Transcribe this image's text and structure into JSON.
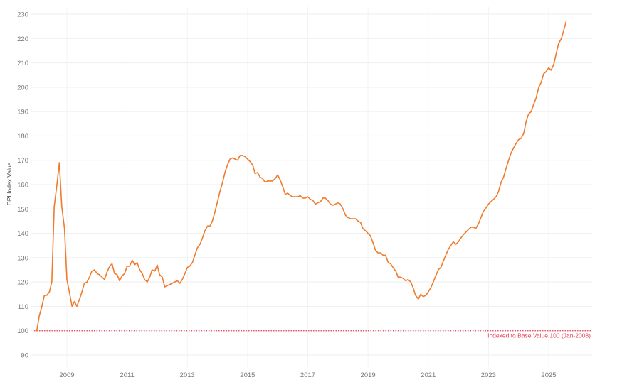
{
  "chart_data": {
    "type": "line",
    "title": "",
    "xlabel": "",
    "ylabel": "DPI Index Value",
    "ylim": [
      87,
      232
    ],
    "yticks": [
      90,
      100,
      110,
      120,
      130,
      140,
      150,
      160,
      170,
      180,
      190,
      200,
      210,
      220,
      230
    ],
    "xticks": [
      "2009",
      "2011",
      "2013",
      "2015",
      "2017",
      "2019",
      "2021",
      "2023",
      "2025"
    ],
    "xlim": [
      2007.85,
      2026.4
    ],
    "grid": true,
    "legend": null,
    "line_color": "#f07b2c",
    "baseline": {
      "value": 100,
      "style": "dotted",
      "color": "#e8405a",
      "label": "Indexed to Base Value 100 (Jan-2008)"
    },
    "series": [
      {
        "name": "DPI Index Value",
        "points": [
          [
            2008.0,
            100
          ],
          [
            2008.08,
            106
          ],
          [
            2008.17,
            110
          ],
          [
            2008.25,
            114.5
          ],
          [
            2008.33,
            114.5
          ],
          [
            2008.42,
            116
          ],
          [
            2008.5,
            120
          ],
          [
            2008.58,
            151
          ],
          [
            2008.67,
            160
          ],
          [
            2008.75,
            169
          ],
          [
            2008.83,
            151
          ],
          [
            2008.92,
            142
          ],
          [
            2009.0,
            121
          ],
          [
            2009.08,
            116
          ],
          [
            2009.17,
            110
          ],
          [
            2009.25,
            112
          ],
          [
            2009.33,
            110
          ],
          [
            2009.42,
            113
          ],
          [
            2009.5,
            116
          ],
          [
            2009.58,
            119.5
          ],
          [
            2009.67,
            120
          ],
          [
            2009.75,
            122
          ],
          [
            2009.83,
            124.5
          ],
          [
            2009.92,
            125
          ],
          [
            2010.0,
            123.5
          ],
          [
            2010.08,
            123
          ],
          [
            2010.17,
            122
          ],
          [
            2010.25,
            121
          ],
          [
            2010.33,
            124
          ],
          [
            2010.42,
            126.5
          ],
          [
            2010.5,
            127.5
          ],
          [
            2010.58,
            123.5
          ],
          [
            2010.67,
            123
          ],
          [
            2010.75,
            120.5
          ],
          [
            2010.83,
            122.5
          ],
          [
            2010.92,
            123.5
          ],
          [
            2011.0,
            126.5
          ],
          [
            2011.08,
            126.5
          ],
          [
            2011.17,
            129
          ],
          [
            2011.25,
            127
          ],
          [
            2011.33,
            128
          ],
          [
            2011.42,
            125
          ],
          [
            2011.5,
            123.5
          ],
          [
            2011.58,
            121
          ],
          [
            2011.67,
            120
          ],
          [
            2011.75,
            122
          ],
          [
            2011.83,
            125
          ],
          [
            2011.92,
            124.5
          ],
          [
            2012.0,
            127
          ],
          [
            2012.08,
            123
          ],
          [
            2012.17,
            122
          ],
          [
            2012.25,
            118
          ],
          [
            2012.33,
            118.5
          ],
          [
            2012.42,
            119
          ],
          [
            2012.5,
            119.5
          ],
          [
            2012.58,
            120
          ],
          [
            2012.67,
            120.5
          ],
          [
            2012.75,
            119.5
          ],
          [
            2012.83,
            121
          ],
          [
            2012.92,
            123.5
          ],
          [
            2013.0,
            126
          ],
          [
            2013.08,
            126.5
          ],
          [
            2013.17,
            128
          ],
          [
            2013.25,
            131
          ],
          [
            2013.33,
            134
          ],
          [
            2013.42,
            135.5
          ],
          [
            2013.5,
            138
          ],
          [
            2013.58,
            141
          ],
          [
            2013.67,
            143
          ],
          [
            2013.75,
            143
          ],
          [
            2013.83,
            145
          ],
          [
            2013.92,
            149
          ],
          [
            2014.0,
            153
          ],
          [
            2014.08,
            157
          ],
          [
            2014.17,
            161
          ],
          [
            2014.25,
            165
          ],
          [
            2014.33,
            168
          ],
          [
            2014.42,
            170.5
          ],
          [
            2014.5,
            171
          ],
          [
            2014.58,
            170.5
          ],
          [
            2014.67,
            170
          ],
          [
            2014.75,
            172
          ],
          [
            2014.83,
            172
          ],
          [
            2014.92,
            171.5
          ],
          [
            2015.0,
            170.5
          ],
          [
            2015.08,
            169.5
          ],
          [
            2015.17,
            168
          ],
          [
            2015.25,
            164.5
          ],
          [
            2015.33,
            165
          ],
          [
            2015.42,
            163
          ],
          [
            2015.5,
            162.5
          ],
          [
            2015.58,
            161
          ],
          [
            2015.67,
            161.5
          ],
          [
            2015.75,
            161.5
          ],
          [
            2015.83,
            161.5
          ],
          [
            2015.92,
            162.5
          ],
          [
            2016.0,
            164
          ],
          [
            2016.08,
            162
          ],
          [
            2016.17,
            159
          ],
          [
            2016.25,
            156
          ],
          [
            2016.33,
            156.5
          ],
          [
            2016.42,
            155.5
          ],
          [
            2016.5,
            155
          ],
          [
            2016.58,
            155
          ],
          [
            2016.67,
            155
          ],
          [
            2016.75,
            155.5
          ],
          [
            2016.83,
            154.5
          ],
          [
            2016.92,
            154.5
          ],
          [
            2017.0,
            155
          ],
          [
            2017.08,
            154
          ],
          [
            2017.17,
            153.5
          ],
          [
            2017.25,
            152
          ],
          [
            2017.33,
            152.5
          ],
          [
            2017.42,
            153
          ],
          [
            2017.5,
            154.5
          ],
          [
            2017.58,
            154.5
          ],
          [
            2017.67,
            153.5
          ],
          [
            2017.75,
            152
          ],
          [
            2017.83,
            151.5
          ],
          [
            2017.92,
            152
          ],
          [
            2018.0,
            152.5
          ],
          [
            2018.08,
            152
          ],
          [
            2018.17,
            150
          ],
          [
            2018.25,
            147.5
          ],
          [
            2018.33,
            146.5
          ],
          [
            2018.42,
            146
          ],
          [
            2018.5,
            146
          ],
          [
            2018.58,
            146
          ],
          [
            2018.67,
            145
          ],
          [
            2018.75,
            144.5
          ],
          [
            2018.83,
            142
          ],
          [
            2018.92,
            141
          ],
          [
            2019.0,
            140
          ],
          [
            2019.08,
            139
          ],
          [
            2019.17,
            136
          ],
          [
            2019.25,
            133
          ],
          [
            2019.33,
            132
          ],
          [
            2019.42,
            132
          ],
          [
            2019.5,
            131
          ],
          [
            2019.58,
            131
          ],
          [
            2019.67,
            128
          ],
          [
            2019.75,
            127.5
          ],
          [
            2019.83,
            126
          ],
          [
            2019.92,
            124.5
          ],
          [
            2020.0,
            122
          ],
          [
            2020.08,
            122
          ],
          [
            2020.17,
            121.5
          ],
          [
            2020.25,
            120.5
          ],
          [
            2020.33,
            121
          ],
          [
            2020.42,
            120
          ],
          [
            2020.5,
            117.5
          ],
          [
            2020.58,
            114.5
          ],
          [
            2020.67,
            113
          ],
          [
            2020.75,
            115
          ],
          [
            2020.83,
            114
          ],
          [
            2020.92,
            114.5
          ],
          [
            2021.0,
            116
          ],
          [
            2021.08,
            117.5
          ],
          [
            2021.17,
            120
          ],
          [
            2021.25,
            122.5
          ],
          [
            2021.33,
            125
          ],
          [
            2021.42,
            126
          ],
          [
            2021.5,
            128.5
          ],
          [
            2021.58,
            131
          ],
          [
            2021.67,
            133.5
          ],
          [
            2021.75,
            135
          ],
          [
            2021.83,
            136.5
          ],
          [
            2021.92,
            135.5
          ],
          [
            2022.0,
            136.5
          ],
          [
            2022.08,
            138
          ],
          [
            2022.17,
            139.5
          ],
          [
            2022.25,
            140.5
          ],
          [
            2022.33,
            141.5
          ],
          [
            2022.42,
            142.5
          ],
          [
            2022.5,
            142.5
          ],
          [
            2022.58,
            142
          ],
          [
            2022.67,
            144
          ],
          [
            2022.75,
            146.5
          ],
          [
            2022.83,
            149
          ],
          [
            2022.92,
            150.5
          ],
          [
            2023.0,
            152
          ],
          [
            2023.08,
            153
          ],
          [
            2023.17,
            154
          ],
          [
            2023.25,
            155
          ],
          [
            2023.33,
            157
          ],
          [
            2023.42,
            161
          ],
          [
            2023.5,
            163
          ],
          [
            2023.58,
            166.5
          ],
          [
            2023.67,
            170
          ],
          [
            2023.75,
            173
          ],
          [
            2023.83,
            175
          ],
          [
            2023.92,
            177
          ],
          [
            2024.0,
            178.5
          ],
          [
            2024.08,
            179
          ],
          [
            2024.17,
            181
          ],
          [
            2024.25,
            186
          ],
          [
            2024.33,
            189
          ],
          [
            2024.42,
            190
          ],
          [
            2024.5,
            193
          ],
          [
            2024.58,
            195.5
          ],
          [
            2024.67,
            200
          ],
          [
            2024.75,
            202
          ],
          [
            2024.83,
            205.5
          ],
          [
            2024.92,
            206.5
          ],
          [
            2025.0,
            208
          ],
          [
            2025.08,
            207
          ],
          [
            2025.17,
            209.5
          ],
          [
            2025.25,
            214
          ],
          [
            2025.33,
            218
          ],
          [
            2025.42,
            220
          ],
          [
            2025.5,
            223.5
          ],
          [
            2025.58,
            227
          ]
        ]
      }
    ]
  }
}
